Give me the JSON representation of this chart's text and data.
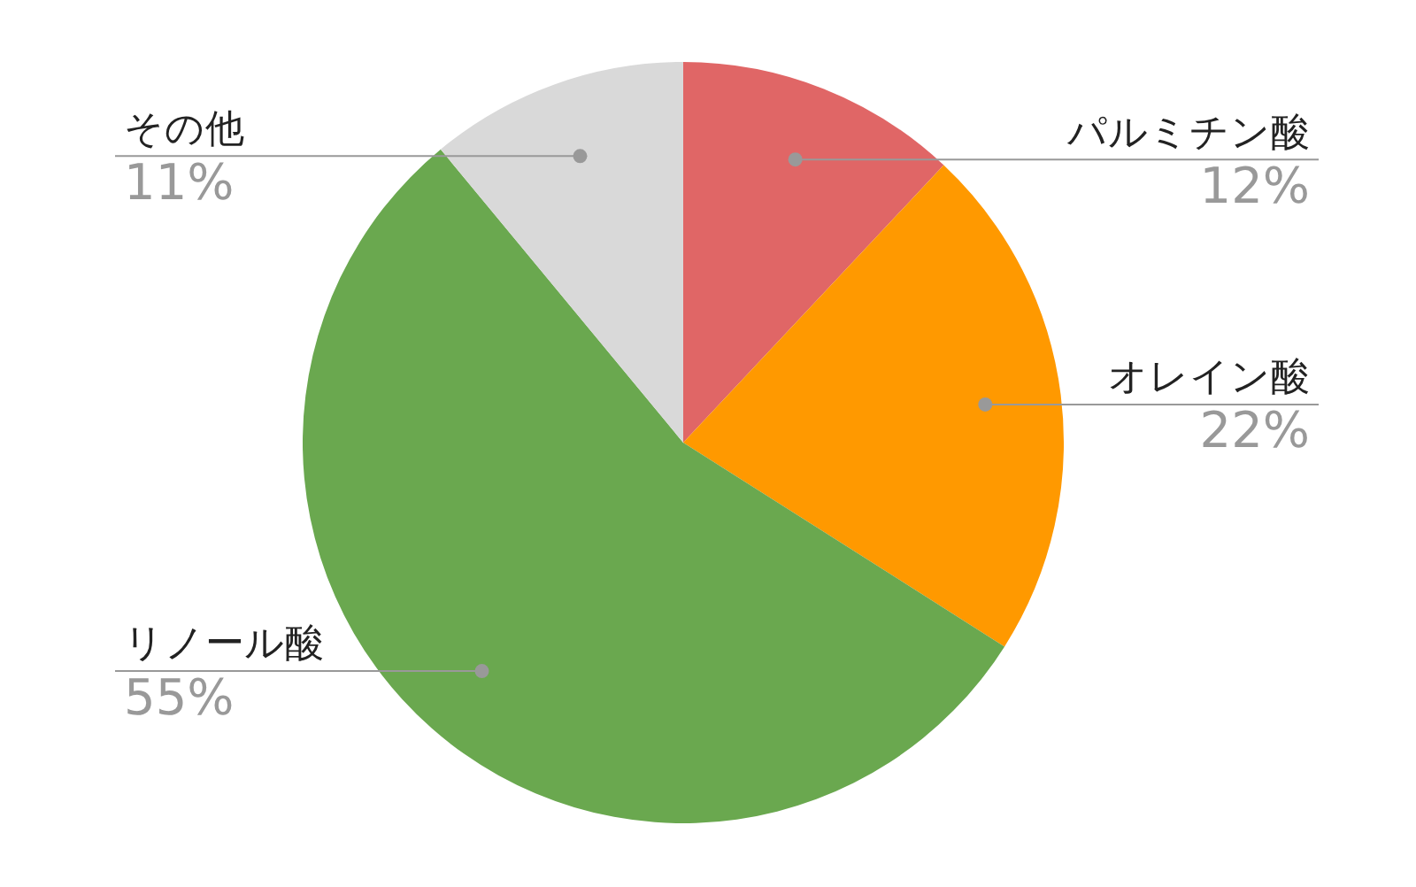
{
  "chart_data": {
    "type": "pie",
    "categories": [
      "パルミチン酸",
      "オレイン酸",
      "リノール酸",
      "その他"
    ],
    "values": [
      12,
      22,
      55,
      11
    ],
    "value_labels": [
      "12%",
      "22%",
      "55%",
      "11%"
    ],
    "colors": [
      "#e06666",
      "#ff9900",
      "#6aa84f",
      "#d9d9d9"
    ],
    "legend": false
  }
}
